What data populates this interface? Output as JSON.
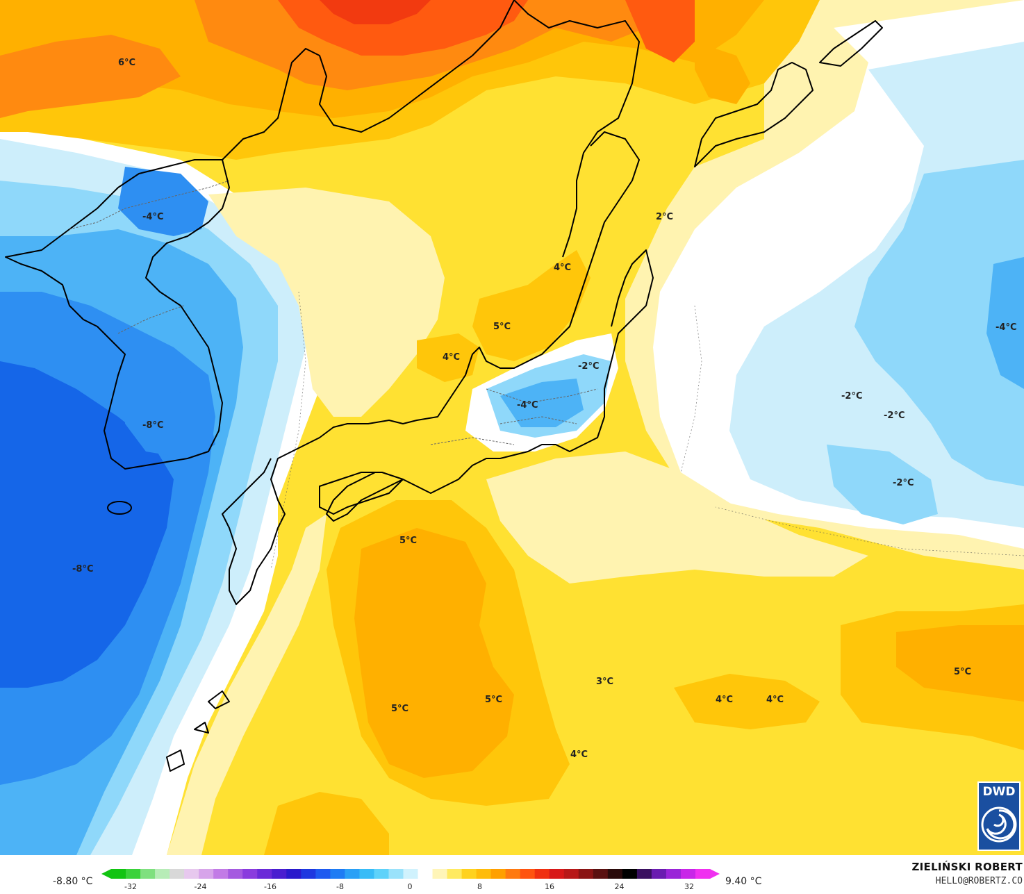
{
  "map": {
    "palette": {
      "deep_blue": "#1566e8",
      "blue": "#2e8ff2",
      "mid_blue": "#4db3f6",
      "light_blue": "#8fd8fa",
      "pale_blue": "#cdeefb",
      "white": "#ffffff",
      "pale_yellow": "#fff3b0",
      "yellow": "#ffe132",
      "gold": "#ffc60a",
      "light_orange": "#ffb000",
      "orange": "#ff8a10",
      "dark_orange": "#ff5a10",
      "red": "#f23a10",
      "coast": "#000000",
      "border": "#666666"
    },
    "labels": [
      {
        "text": "6°C"
      },
      {
        "text": "-4°C"
      },
      {
        "text": "-8°C"
      },
      {
        "text": "-8°C"
      },
      {
        "text": "2°C"
      },
      {
        "text": "4°C"
      },
      {
        "text": "5°C"
      },
      {
        "text": "4°C"
      },
      {
        "text": "-2°C"
      },
      {
        "text": "-4°C"
      },
      {
        "text": "-2°C"
      },
      {
        "text": "-2°C"
      },
      {
        "text": "-2°C"
      },
      {
        "text": "-4°C"
      },
      {
        "text": "5°C"
      },
      {
        "text": "3°C"
      },
      {
        "text": "5°C"
      },
      {
        "text": "5°C"
      },
      {
        "text": "4°C"
      },
      {
        "text": "4°C"
      },
      {
        "text": "4°C"
      },
      {
        "text": "5°C"
      }
    ]
  },
  "legend": {
    "min_label": "-8.80 °C",
    "max_label": "9.40 °C",
    "ticks": [
      "-32",
      "-24",
      "-16",
      "-8",
      "0",
      "8",
      "16",
      "24",
      "32"
    ],
    "colors": [
      "#11c411",
      "#3ad23a",
      "#7fe07f",
      "#b7ecb7",
      "#d8d8d8",
      "#e7c8ee",
      "#d7a4ea",
      "#c27be6",
      "#a55ae0",
      "#8a3cde",
      "#6a2ad8",
      "#4a1ed0",
      "#2a1acc",
      "#1e38e0",
      "#1e5af0",
      "#1e7cf4",
      "#2aa0f6",
      "#38bcf7",
      "#5ed2fa",
      "#9ae2fb",
      "#d0f2fd",
      "#ffffff",
      "#fff5b8",
      "#ffea60",
      "#ffd21e",
      "#ffbc0a",
      "#ffa000",
      "#ff7a10",
      "#ff5410",
      "#f03010",
      "#d81818",
      "#b81818",
      "#8a1414",
      "#5a1010",
      "#2a0a0a",
      "#000000",
      "#3a1060",
      "#6a1cb0",
      "#9a24d8",
      "#c826e8",
      "#f030f0"
    ],
    "author": "ZIELIŃSKI ROBERT",
    "email": "HELLO@ROBERTZ.CO"
  },
  "logo": {
    "text": "DWD",
    "bg": "#1a4fa0"
  }
}
